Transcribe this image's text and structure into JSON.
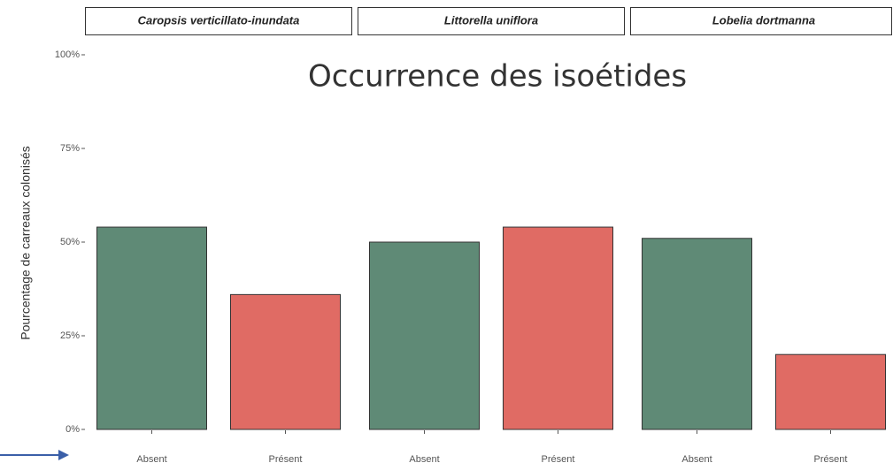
{
  "title": "Occurrence des isoétides",
  "y_label": "Pourcentage de carreaux colonisés",
  "ylim": [
    0,
    100
  ],
  "yticks": [
    {
      "value": 0,
      "label": "0%"
    },
    {
      "value": 25,
      "label": "25%"
    },
    {
      "value": 50,
      "label": "50%"
    },
    {
      "value": 75,
      "label": "75%"
    },
    {
      "value": 100,
      "label": "100%"
    }
  ],
  "chart_data": [
    {
      "type": "bar",
      "title": "Caropsis verticillato-inundata",
      "categories": [
        "Absent",
        "Présent"
      ],
      "values": [
        54,
        36
      ],
      "colors": [
        "#5f8a76",
        "#e06b64"
      ]
    },
    {
      "type": "bar",
      "title": "Littorella uniflora",
      "categories": [
        "Absent",
        "Présent"
      ],
      "values": [
        50,
        54
      ],
      "colors": [
        "#5f8a76",
        "#e06b64"
      ]
    },
    {
      "type": "bar",
      "title": "Lobelia dortmanna",
      "categories": [
        "Absent",
        "Présent"
      ],
      "values": [
        51,
        20
      ],
      "colors": [
        "#5f8a76",
        "#e06b64"
      ]
    }
  ]
}
